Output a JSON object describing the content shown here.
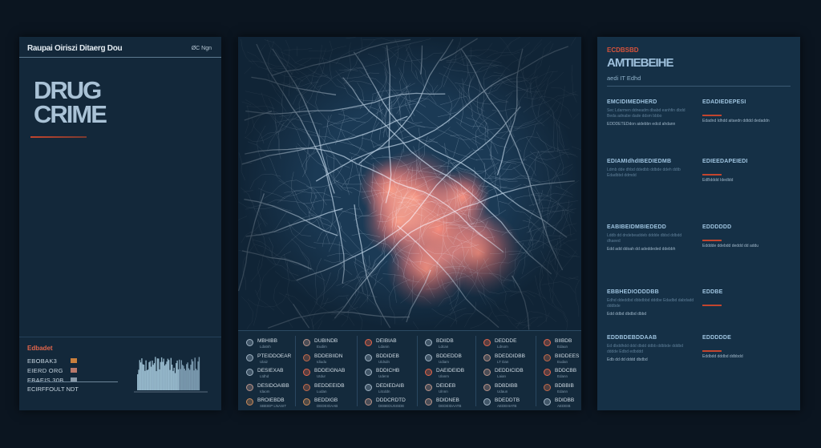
{
  "left_panel": {
    "header_title": "Raupai Oiriszi Ditaerg Dou",
    "header_right": "ØC Ngn",
    "hero_title_line1": "DRUG",
    "hero_title_line2": "CRIME",
    "legend_title": "Edbadet",
    "legend_items": [
      {
        "label": "EBOBAK3",
        "color": "#c97f3d"
      },
      {
        "label": "EIERD ORG",
        "color": "#b8796b"
      },
      {
        "label": "EBAEIS 30B",
        "color": "#8899a8"
      }
    ],
    "footer": "ECIRFFOULT NDT"
  },
  "map": {
    "heat_color": "#e8532f",
    "road_color": "#b9cfe2",
    "legend_columns": [
      [
        {
          "label": "MBHIBB",
          "sub": "Ldatnh",
          "icon": "#9fb2c2"
        },
        {
          "label": "PTEIDDOEAR",
          "sub": "Ulaiz",
          "icon": "#9fb2c2"
        },
        {
          "label": "DESIEXAB",
          "sub": "Ltdhd",
          "icon": "#9fb2c2"
        },
        {
          "label": "DESIDOAIBB",
          "sub": "Idaom",
          "icon": "#b9948a"
        },
        {
          "label": "BROIEBDB",
          "sub": "SBEIEP LNASIT",
          "icon": "#c98a5a"
        }
      ],
      [
        {
          "label": "DUBINDB",
          "sub": "Eudim",
          "icon": "#b9948a"
        },
        {
          "label": "BDDEBIIDN",
          "sub": "Idiudu",
          "icon": "#c26a4c"
        },
        {
          "label": "BDDEIGNAB",
          "sub": "Utdur",
          "icon": "#e2664c"
        },
        {
          "label": "BEDDEEIDB",
          "sub": "Ludan",
          "icon": "#c26a4c"
        },
        {
          "label": "BEDDIGB",
          "sub": "DEDEIOAAB",
          "icon": "#c98a5a"
        }
      ],
      [
        {
          "label": "DEIBIAB",
          "sub": "Ldanin",
          "icon": "#e2664c"
        },
        {
          "label": "BDDIDEB",
          "sub": "Uldsdn",
          "icon": "#9fb2c2"
        },
        {
          "label": "BDDICHB",
          "sub": "Udenn",
          "icon": "#9fb2c2"
        },
        {
          "label": "DEDIEDAIB",
          "sub": "Litcddn",
          "icon": "#9fb2c2"
        },
        {
          "label": "DDDCRDTD",
          "sub": "DEBEDUSISDE",
          "icon": "#b9948a"
        }
      ],
      [
        {
          "label": "BDIIDB",
          "sub": "Ldcan",
          "icon": "#9fb2c2"
        },
        {
          "label": "BDDEDDB",
          "sub": "Udiam",
          "icon": "#9fb2c2"
        },
        {
          "label": "DAEIDEIDB",
          "sub": "Ulanm",
          "icon": "#e2664c"
        },
        {
          "label": "DEIDEB",
          "sub": "Ulnnn",
          "icon": "#b9948a"
        },
        {
          "label": "BDIDNEB",
          "sub": "DEDEIDAATB",
          "icon": "#b9948a"
        }
      ],
      [
        {
          "label": "DEDDDE",
          "sub": "Ldnom",
          "icon": "#e2664c"
        },
        {
          "label": "BDEDDIDBB",
          "sub": "LT Dan",
          "icon": "#b9948a"
        },
        {
          "label": "DEDDICIDB",
          "sub": "Laian",
          "icon": "#b9948a"
        },
        {
          "label": "BDBDIBB",
          "sub": "Udaun",
          "icon": "#b9948a"
        },
        {
          "label": "BDEDDTB",
          "sub": "AEDEIIIATB",
          "icon": "#9fb2c2"
        }
      ],
      [
        {
          "label": "BIIBDB",
          "sub": "Edaun",
          "icon": "#e2664c"
        },
        {
          "label": "BIIDDEES",
          "sub": "Eudan",
          "icon": "#c26a4c"
        },
        {
          "label": "BDDCBB",
          "sub": "Edann",
          "icon": "#e2664c"
        },
        {
          "label": "BDBBIB",
          "sub": "Edann",
          "icon": "#c26a4c"
        },
        {
          "label": "BDIDBB",
          "sub": "AEDEIB",
          "icon": "#9fb2c2"
        }
      ]
    ]
  },
  "right_panel": {
    "kicker": "ECDBSBD",
    "title": "AMTIEBEIHE",
    "subtitle": "aedi IT Edhd",
    "sections": [
      {
        "heading": "EMCIDIMEDHERD",
        "text": "Sec Ldarmen ddneadm dbabd eanhfin dbdd Beda adnabe dade ddsm bbbo",
        "text2": "EDDDETEDdon aidebbn edcd ahdann"
      },
      {
        "heading": "EDADIEDEPESI",
        "text": "",
        "text2": "Edadnd Idhdd aitaedn ddtdd dedaddn"
      },
      {
        "heading": "EDIAMIdhdIBEDIEDMB",
        "text": "Ldmb dde dhbd ddedbb ddbde ddeh ddtb Edadbbd ddmdd",
        "text2": ""
      },
      {
        "heading": "EDIEEDAPEIEDI",
        "text": "",
        "text2": "EdBdddd Idedldd"
      },
      {
        "heading": "EABIBEIDMBIEDEDD",
        "text": "Lddb dd dndebeaddeb dddde dbbd ddbdd dhaeed",
        "text2": "Edd add ddoah dd adeddeded ddebbh"
      },
      {
        "heading": "EDDDDDD",
        "text": "",
        "text2": "Edddde ddebdd deddd dd addu"
      },
      {
        "heading": "EBBHEDIODDDBB",
        "text": "Edhd ddeddbd dbbdbbd dddbe Edadbd dabdadd dddbde",
        "text2": "Edd ddbd dbdbd dbbd"
      },
      {
        "heading": "EDDBE",
        "text": "",
        "text2": ""
      },
      {
        "heading": "EDDBDEBDDAAB",
        "text": "Ed dbddhdd ddd dbdd ddbb ddbbde dddbd dddde Edbd edbddd",
        "text2": "Edb dd dd dddd dbdbd"
      },
      {
        "heading": "EDDDDDE",
        "text": "",
        "text2": "Eddbdd dddbd ddbbdd"
      }
    ]
  }
}
